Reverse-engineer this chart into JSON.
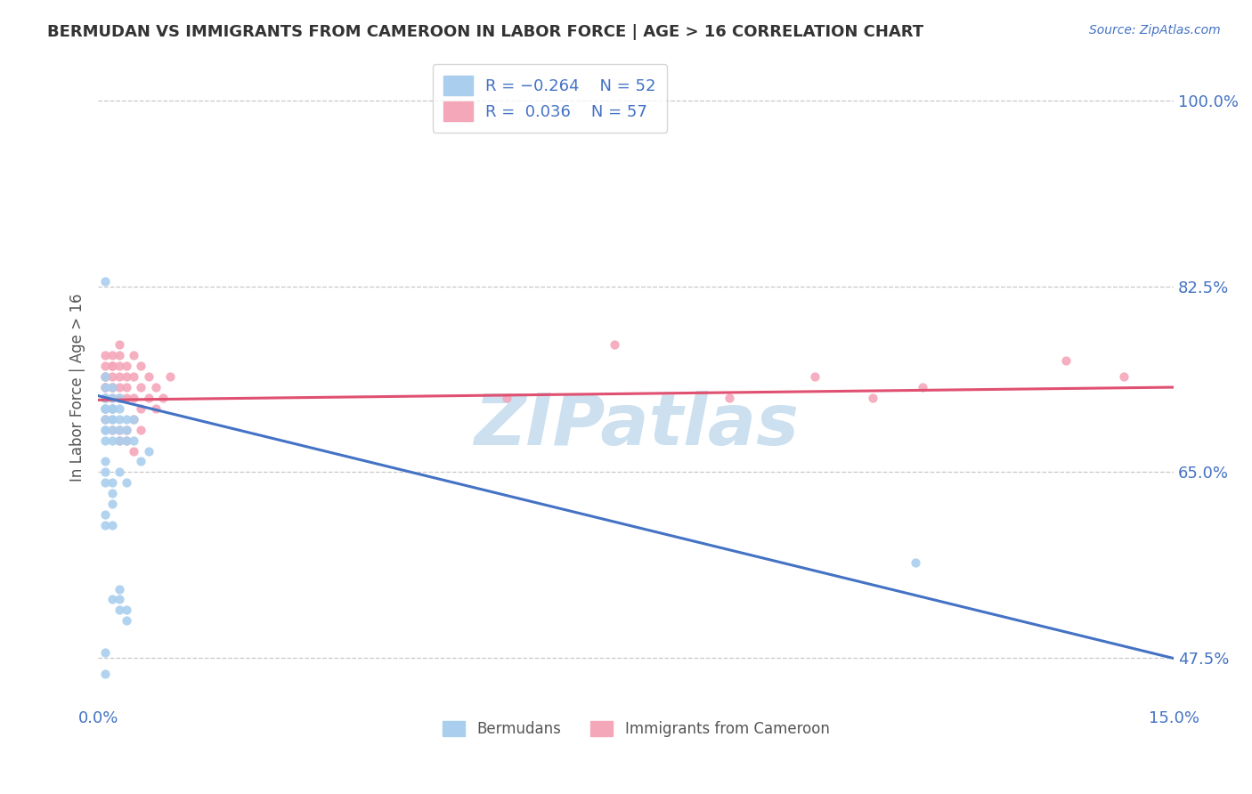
{
  "title": "BERMUDAN VS IMMIGRANTS FROM CAMEROON IN LABOR FORCE | AGE > 16 CORRELATION CHART",
  "source_text": "Source: ZipAtlas.com",
  "ylabel": "In Labor Force | Age > 16",
  "xlim": [
    0.0,
    0.15
  ],
  "ylim": [
    0.43,
    1.03
  ],
  "yticks": [
    0.475,
    0.65,
    0.825,
    1.0
  ],
  "ytick_labels": [
    "47.5%",
    "65.0%",
    "82.5%",
    "100.0%"
  ],
  "xticks": [
    0.0,
    0.15
  ],
  "xtick_labels": [
    "0.0%",
    "15.0%"
  ],
  "background_color": "#ffffff",
  "grid_color": "#c8c8c8",
  "title_color": "#333333",
  "axis_color": "#4472c4",
  "blue_scatter_color": "#aacfee",
  "pink_scatter_color": "#f4a7b9",
  "blue_line_color": "#4472c4",
  "pink_line_color": "#e05070",
  "legend_label1": "Bermudans",
  "legend_label2": "Immigrants from Cameroon",
  "blue_slope": -1.65,
  "blue_intercept": 0.722,
  "pink_slope": 0.08,
  "pink_intercept": 0.718,
  "blue_points_x": [
    0.001,
    0.001,
    0.001,
    0.001,
    0.001,
    0.001,
    0.001,
    0.001,
    0.001,
    0.001,
    0.002,
    0.002,
    0.002,
    0.002,
    0.002,
    0.002,
    0.002,
    0.002,
    0.003,
    0.003,
    0.003,
    0.003,
    0.003,
    0.004,
    0.004,
    0.004,
    0.005,
    0.005,
    0.006,
    0.007,
    0.001,
    0.001,
    0.001,
    0.002,
    0.002,
    0.003,
    0.004,
    0.001,
    0.001,
    0.002,
    0.002,
    0.002,
    0.003,
    0.003,
    0.003,
    0.004,
    0.004,
    0.001,
    0.001,
    0.001,
    0.114
  ],
  "blue_points_y": [
    0.72,
    0.7,
    0.71,
    0.69,
    0.73,
    0.68,
    0.74,
    0.71,
    0.72,
    0.69,
    0.72,
    0.69,
    0.71,
    0.7,
    0.68,
    0.73,
    0.71,
    0.7,
    0.7,
    0.69,
    0.71,
    0.68,
    0.72,
    0.7,
    0.69,
    0.68,
    0.68,
    0.7,
    0.66,
    0.67,
    0.64,
    0.65,
    0.66,
    0.64,
    0.63,
    0.65,
    0.64,
    0.61,
    0.6,
    0.6,
    0.62,
    0.53,
    0.53,
    0.52,
    0.54,
    0.52,
    0.51,
    0.83,
    0.48,
    0.46,
    0.565
  ],
  "pink_points_x": [
    0.001,
    0.001,
    0.001,
    0.001,
    0.001,
    0.001,
    0.001,
    0.001,
    0.001,
    0.002,
    0.002,
    0.002,
    0.002,
    0.002,
    0.002,
    0.002,
    0.003,
    0.003,
    0.003,
    0.003,
    0.003,
    0.003,
    0.004,
    0.004,
    0.004,
    0.004,
    0.005,
    0.005,
    0.005,
    0.006,
    0.006,
    0.006,
    0.007,
    0.007,
    0.008,
    0.008,
    0.009,
    0.01,
    0.003,
    0.004,
    0.005,
    0.001,
    0.002,
    0.002,
    0.003,
    0.004,
    0.005,
    0.006,
    0.057,
    0.072,
    0.088,
    0.1,
    0.108,
    0.115,
    0.135,
    0.143
  ],
  "pink_points_y": [
    0.74,
    0.72,
    0.75,
    0.73,
    0.76,
    0.71,
    0.74,
    0.72,
    0.73,
    0.75,
    0.73,
    0.74,
    0.72,
    0.76,
    0.73,
    0.75,
    0.75,
    0.73,
    0.76,
    0.74,
    0.72,
    0.77,
    0.74,
    0.72,
    0.75,
    0.73,
    0.74,
    0.72,
    0.76,
    0.73,
    0.75,
    0.71,
    0.74,
    0.72,
    0.73,
    0.71,
    0.72,
    0.74,
    0.68,
    0.69,
    0.67,
    0.7,
    0.69,
    0.71,
    0.69,
    0.68,
    0.7,
    0.69,
    0.72,
    0.77,
    0.72,
    0.74,
    0.72,
    0.73,
    0.755,
    0.74
  ],
  "watermark_text": "ZIPatlas",
  "watermark_color": "#cce0f0",
  "watermark_fontsize": 58
}
